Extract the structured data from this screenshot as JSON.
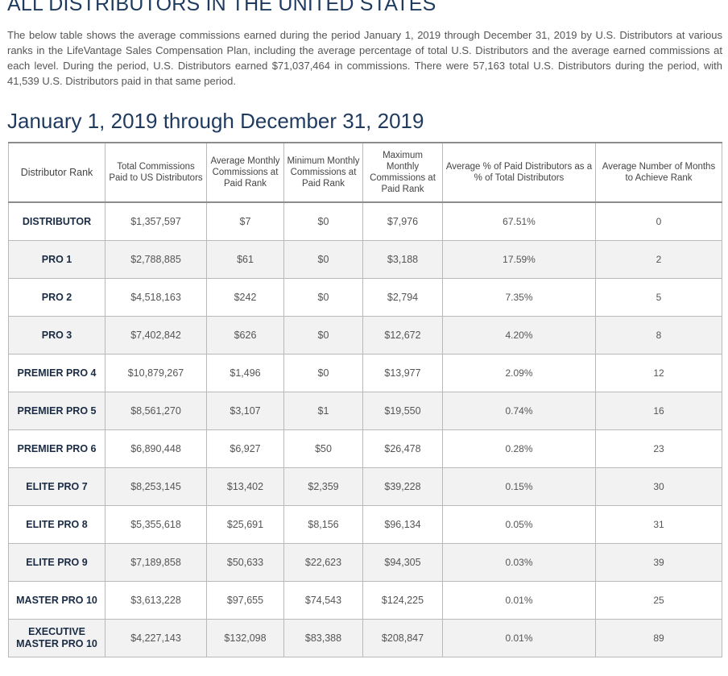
{
  "page": {
    "heading": "ALL DISTRIBUTORS IN THE UNITED STATES",
    "intro": "The below table shows the average commissions earned during the period January 1, 2019 through December 31, 2019 by U.S. Distributors at various ranks in the LifeVantage Sales Compensation Plan, including the average percentage of total U.S. Distributors and the average earned commissions at each level. During the period, U.S. Distributors earned $71,037,464 in commissions. There were 57,163 total U.S. Distributors during the period, with 41,539 U.S. Distributors paid in that same period.",
    "period_heading": "January 1, 2019 through December 31, 2019"
  },
  "table": {
    "headers": {
      "rank": "Distributor Rank",
      "total": "Total Commissions Paid to US Distributors",
      "avg": "Average Monthly Commissions at Paid Rank",
      "min": "Minimum Monthly Commissions at Paid Rank",
      "max": "Maximum Monthly Commissions at Paid Rank",
      "pct": "Average % of Paid Distributors as a % of Total Distributors",
      "months": "Average Number of Months to Achieve Rank"
    },
    "rows": [
      {
        "rank": "DISTRIBUTOR",
        "total": "$1,357,597",
        "avg": "$7",
        "min": "$0",
        "max": "$7,976",
        "pct": "67.51%",
        "months": "0"
      },
      {
        "rank": "PRO 1",
        "total": "$2,788,885",
        "avg": "$61",
        "min": "$0",
        "max": "$3,188",
        "pct": "17.59%",
        "months": "2"
      },
      {
        "rank": "PRO 2",
        "total": "$4,518,163",
        "avg": "$242",
        "min": "$0",
        "max": "$2,794",
        "pct": "7.35%",
        "months": "5"
      },
      {
        "rank": "PRO 3",
        "total": "$7,402,842",
        "avg": "$626",
        "min": "$0",
        "max": "$12,672",
        "pct": "4.20%",
        "months": "8"
      },
      {
        "rank": "PREMIER PRO 4",
        "total": "$10,879,267",
        "avg": "$1,496",
        "min": "$0",
        "max": "$13,977",
        "pct": "2.09%",
        "months": "12"
      },
      {
        "rank": "PREMIER PRO 5",
        "total": "$8,561,270",
        "avg": "$3,107",
        "min": "$1",
        "max": "$19,550",
        "pct": "0.74%",
        "months": "16"
      },
      {
        "rank": "PREMIER PRO 6",
        "total": "$6,890,448",
        "avg": "$6,927",
        "min": "$50",
        "max": "$26,478",
        "pct": "0.28%",
        "months": "23"
      },
      {
        "rank": "ELITE PRO 7",
        "total": "$8,253,145",
        "avg": "$13,402",
        "min": "$2,359",
        "max": "$39,228",
        "pct": "0.15%",
        "months": "30"
      },
      {
        "rank": "ELITE PRO 8",
        "total": "$5,355,618",
        "avg": "$25,691",
        "min": "$8,156",
        "max": "$96,134",
        "pct": "0.05%",
        "months": "31"
      },
      {
        "rank": "ELITE PRO 9",
        "total": "$7,189,858",
        "avg": "$50,633",
        "min": "$22,623",
        "max": "$94,305",
        "pct": "0.03%",
        "months": "39"
      },
      {
        "rank": "MASTER PRO 10",
        "total": "$3,613,228",
        "avg": "$97,655",
        "min": "$74,543",
        "max": "$124,225",
        "pct": "0.01%",
        "months": "25"
      },
      {
        "rank": "EXECUTIVE MASTER PRO 10",
        "total": "$4,227,143",
        "avg": "$132,098",
        "min": "$83,388",
        "max": "$208,847",
        "pct": "0.01%",
        "months": "89"
      }
    ]
  }
}
